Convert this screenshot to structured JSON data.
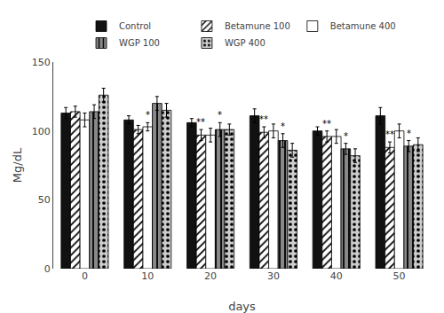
{
  "chart_data": {
    "type": "bar",
    "xlabel": "days",
    "ylabel": "Mg/dL",
    "categories": [
      "0",
      "10",
      "20",
      "30",
      "40",
      "50"
    ],
    "series": [
      {
        "name": "Control",
        "color": "#111111",
        "values": [
          113,
          108,
          106,
          111,
          100,
          111
        ],
        "errors": [
          4,
          3,
          3,
          5,
          3,
          6
        ]
      },
      {
        "name": "Betamune 100",
        "color": "white",
        "marker": "diagonal",
        "values": [
          114,
          101,
          97,
          99,
          96,
          88
        ],
        "errors": [
          4,
          3,
          4,
          4,
          4,
          4
        ]
      },
      {
        "name": "Betamune 400",
        "color": "white",
        "values": [
          108,
          103,
          97,
          100,
          96,
          100
        ],
        "errors": [
          5,
          3,
          5,
          5,
          5,
          5
        ]
      },
      {
        "name": "WGP 100",
        "color": "#888888",
        "marker": "vertical",
        "values": [
          114,
          120,
          101,
          93,
          87,
          89
        ],
        "errors": [
          5,
          5,
          5,
          5,
          4,
          4
        ]
      },
      {
        "name": "WGP 400",
        "color": "#cccccc",
        "marker": "dots",
        "values": [
          126,
          115,
          101,
          86,
          82,
          90
        ],
        "errors": [
          5,
          5,
          4,
          5,
          5,
          5
        ]
      }
    ],
    "annotations": [
      {
        "category": "10",
        "series": "Betamune 400",
        "text": "*"
      },
      {
        "category": "20",
        "series": "Betamune 100",
        "text": "**"
      },
      {
        "category": "20",
        "series": "WGP 100",
        "text": "*"
      },
      {
        "category": "30",
        "series": "Betamune 100",
        "text": "**"
      },
      {
        "category": "30",
        "series": "WGP 100",
        "text": "*"
      },
      {
        "category": "40",
        "series": "Betamune 100",
        "text": "**"
      },
      {
        "category": "40",
        "series": "WGP 100",
        "text": "*"
      },
      {
        "category": "50",
        "series": "Betamune 100",
        "text": "**"
      },
      {
        "category": "50",
        "series": "WGP 100",
        "text": "*"
      }
    ],
    "ylim": [
      0,
      150
    ],
    "yticks": [
      0,
      50,
      100,
      150
    ],
    "grid": false,
    "legend": "top"
  }
}
